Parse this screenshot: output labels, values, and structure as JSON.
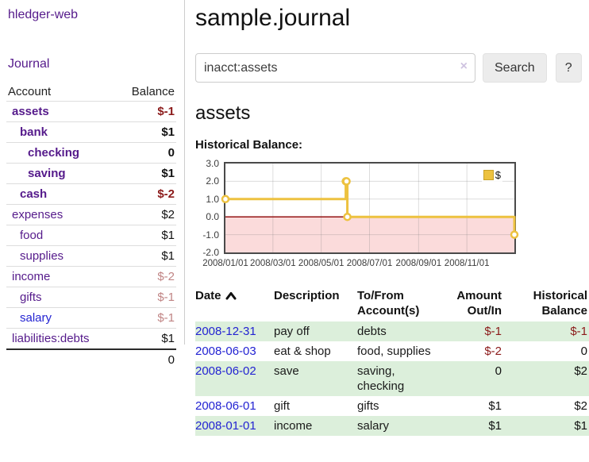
{
  "sidebar": {
    "app_title": "hledger-web",
    "nav": {
      "journal_label": "Journal"
    },
    "accounts_table": {
      "headers": {
        "account": "Account",
        "balance": "Balance"
      },
      "rows": [
        {
          "name": "assets",
          "depth": 1,
          "bold": true,
          "link_color": "purple",
          "balance": "$-1",
          "balance_style": "neg-strong"
        },
        {
          "name": "bank",
          "depth": 2,
          "bold": true,
          "link_color": "purple",
          "balance": "$1",
          "balance_style": "pos-strong"
        },
        {
          "name": "checking",
          "depth": 3,
          "bold": true,
          "link_color": "purple",
          "balance": "0",
          "balance_style": "pos-strong"
        },
        {
          "name": "saving",
          "depth": 3,
          "bold": true,
          "link_color": "purple",
          "balance": "$1",
          "balance_style": "pos-strong"
        },
        {
          "name": "cash",
          "depth": 2,
          "bold": true,
          "link_color": "purple",
          "balance": "$-2",
          "balance_style": "neg-strong"
        },
        {
          "name": "expenses",
          "depth": 1,
          "bold": false,
          "link_color": "purple",
          "balance": "$2",
          "balance_style": "pos"
        },
        {
          "name": "food",
          "depth": 2,
          "bold": false,
          "link_color": "purple",
          "balance": "$1",
          "balance_style": "pos"
        },
        {
          "name": "supplies",
          "depth": 2,
          "bold": false,
          "link_color": "purple",
          "balance": "$1",
          "balance_style": "pos"
        },
        {
          "name": "income",
          "depth": 1,
          "bold": false,
          "link_color": "purple",
          "balance": "$-2",
          "balance_style": "neg"
        },
        {
          "name": "gifts",
          "depth": 2,
          "bold": false,
          "link_color": "purple",
          "balance": "$-1",
          "balance_style": "neg"
        },
        {
          "name": "salary",
          "depth": 2,
          "bold": false,
          "link_color": "blue",
          "balance": "$-1",
          "balance_style": "neg"
        },
        {
          "name": "liabilities:debts",
          "depth": 1,
          "bold": false,
          "link_color": "purple",
          "balance": "$1",
          "balance_style": "pos"
        }
      ],
      "total": "0"
    }
  },
  "main": {
    "page_title": "sample.journal",
    "search": {
      "value": "inacct:assets",
      "clear_icon": "×",
      "button_label": "Search",
      "help_label": "?"
    },
    "section_title": "assets",
    "chart_label": "Historical Balance:"
  },
  "icons": {
    "sort_ascending": "chevron-up",
    "clear_search": "x-mark"
  },
  "chart_data": {
    "type": "line",
    "step": true,
    "title": "Historical Balance:",
    "legend": {
      "label": "$",
      "position": "top-right"
    },
    "series": [
      {
        "name": "$",
        "color": "#edc240",
        "points": [
          {
            "date": "2008-01-01",
            "x": 0,
            "y": 1
          },
          {
            "date": "2008-06-01",
            "x": 152,
            "y": 2
          },
          {
            "date": "2008-06-02",
            "x": 153,
            "y": 2
          },
          {
            "date": "2008-06-03",
            "x": 154,
            "y": 0
          },
          {
            "date": "2008-12-31",
            "x": 365,
            "y": -1
          }
        ]
      }
    ],
    "xlim": [
      0,
      365
    ],
    "ylim": [
      -2,
      3
    ],
    "x_ticks": [
      {
        "label": "2008/01/01",
        "x": 0
      },
      {
        "label": "2008/03/01",
        "x": 60
      },
      {
        "label": "2008/05/01",
        "x": 121
      },
      {
        "label": "2008/07/01",
        "x": 182
      },
      {
        "label": "2008/09/01",
        "x": 244
      },
      {
        "label": "2008/11/01",
        "x": 305
      }
    ],
    "y_ticks": [
      {
        "label": "3.0",
        "y": 3
      },
      {
        "label": "2.0",
        "y": 2
      },
      {
        "label": "1.0",
        "y": 1
      },
      {
        "label": "0.0",
        "y": 0
      },
      {
        "label": "-1.0",
        "y": -1
      },
      {
        "label": "-2.0",
        "y": -2
      }
    ],
    "grid": true,
    "negative_fill": "#fbdbdb",
    "zero_line_color": "#8b0000"
  },
  "transactions": {
    "headers": {
      "date": "Date",
      "description": "Description",
      "tofrom": "To/From Account(s)",
      "amount": "Amount Out/In",
      "balance": "Historical Balance"
    },
    "rows": [
      {
        "date": "2008-12-31",
        "description": "pay off",
        "accounts": "debts",
        "amount": "$-1",
        "amount_neg": true,
        "balance": "$-1",
        "balance_neg": true
      },
      {
        "date": "2008-06-03",
        "description": "eat & shop",
        "accounts": "food, supplies",
        "amount": "$-2",
        "amount_neg": true,
        "balance": "0",
        "balance_neg": false
      },
      {
        "date": "2008-06-02",
        "description": "save",
        "accounts": "saving, checking",
        "amount": "0",
        "amount_neg": false,
        "balance": "$2",
        "balance_neg": false
      },
      {
        "date": "2008-06-01",
        "description": "gift",
        "accounts": "gifts",
        "amount": "$1",
        "amount_neg": false,
        "balance": "$2",
        "balance_neg": false
      },
      {
        "date": "2008-01-01",
        "description": "income",
        "accounts": "salary",
        "amount": "$1",
        "amount_neg": false,
        "balance": "$1",
        "balance_neg": false
      }
    ]
  }
}
